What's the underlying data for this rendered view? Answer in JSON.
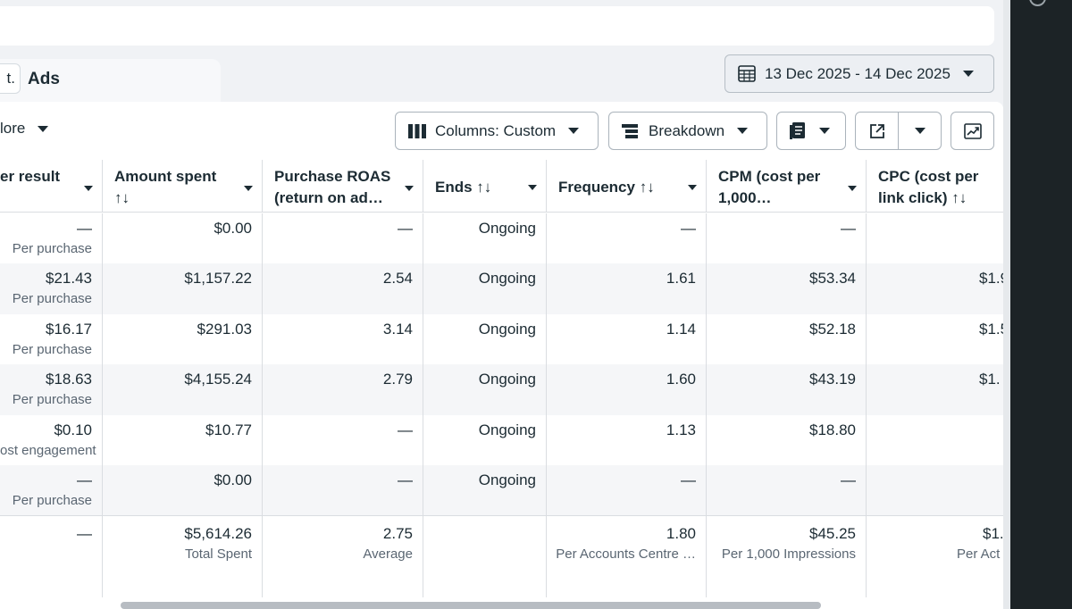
{
  "tabs": {
    "left_chip": "t.",
    "ads_label": "Ads"
  },
  "date_range": "13 Dec 2025 - 14 Dec 2025",
  "toolbar": {
    "more_label": "lore",
    "columns_label": "Columns: Custom",
    "breakdown_label": "Breakdown"
  },
  "sort_glyph": "↑↓",
  "headers": {
    "cost_per_result": "er result",
    "amount_spent": "Amount spent",
    "purchase_roas_1": "Purchase ROAS",
    "purchase_roas_2": "(return on ad…",
    "ends": "Ends",
    "frequency": "Frequency",
    "cpm_1": "CPM (cost per",
    "cpm_2": "1,000…",
    "cpc_1": "CPC (cost per",
    "cpc_2": "link click)"
  },
  "rows": [
    {
      "cost": "—",
      "cost_sub": "Per purchase",
      "spent": "$0.00",
      "roas": "—",
      "ends": "Ongoing",
      "freq": "—",
      "cpm": "—",
      "cpc": ""
    },
    {
      "cost": "$21.43",
      "cost_sub": "Per purchase",
      "spent": "$1,157.22",
      "roas": "2.54",
      "ends": "Ongoing",
      "freq": "1.61",
      "cpm": "$53.34",
      "cpc": "$1.9"
    },
    {
      "cost": "$16.17",
      "cost_sub": "Per purchase",
      "spent": "$291.03",
      "roas": "3.14",
      "ends": "Ongoing",
      "freq": "1.14",
      "cpm": "$52.18",
      "cpc": "$1.5"
    },
    {
      "cost": "$18.63",
      "cost_sub": "Per purchase",
      "spent": "$4,155.24",
      "roas": "2.79",
      "ends": "Ongoing",
      "freq": "1.60",
      "cpm": "$43.19",
      "cpc": "$1."
    },
    {
      "cost": "$0.10",
      "cost_sub": "ost engagement",
      "spent": "$10.77",
      "roas": "—",
      "ends": "Ongoing",
      "freq": "1.13",
      "cpm": "$18.80",
      "cpc": ""
    },
    {
      "cost": "—",
      "cost_sub": "Per purchase",
      "spent": "$0.00",
      "roas": "—",
      "ends": "Ongoing",
      "freq": "—",
      "cpm": "—",
      "cpc": ""
    }
  ],
  "totals": {
    "cost": "—",
    "spent": "$5,614.26",
    "spent_sub": "Total Spent",
    "roas": "2.75",
    "roas_sub": "Average",
    "freq": "1.80",
    "freq_sub": "Per Accounts Centre …",
    "cpm": "$45.25",
    "cpm_sub": "Per 1,000 Impressions",
    "cpc": "$1.",
    "cpc_sub": "Per Act"
  }
}
